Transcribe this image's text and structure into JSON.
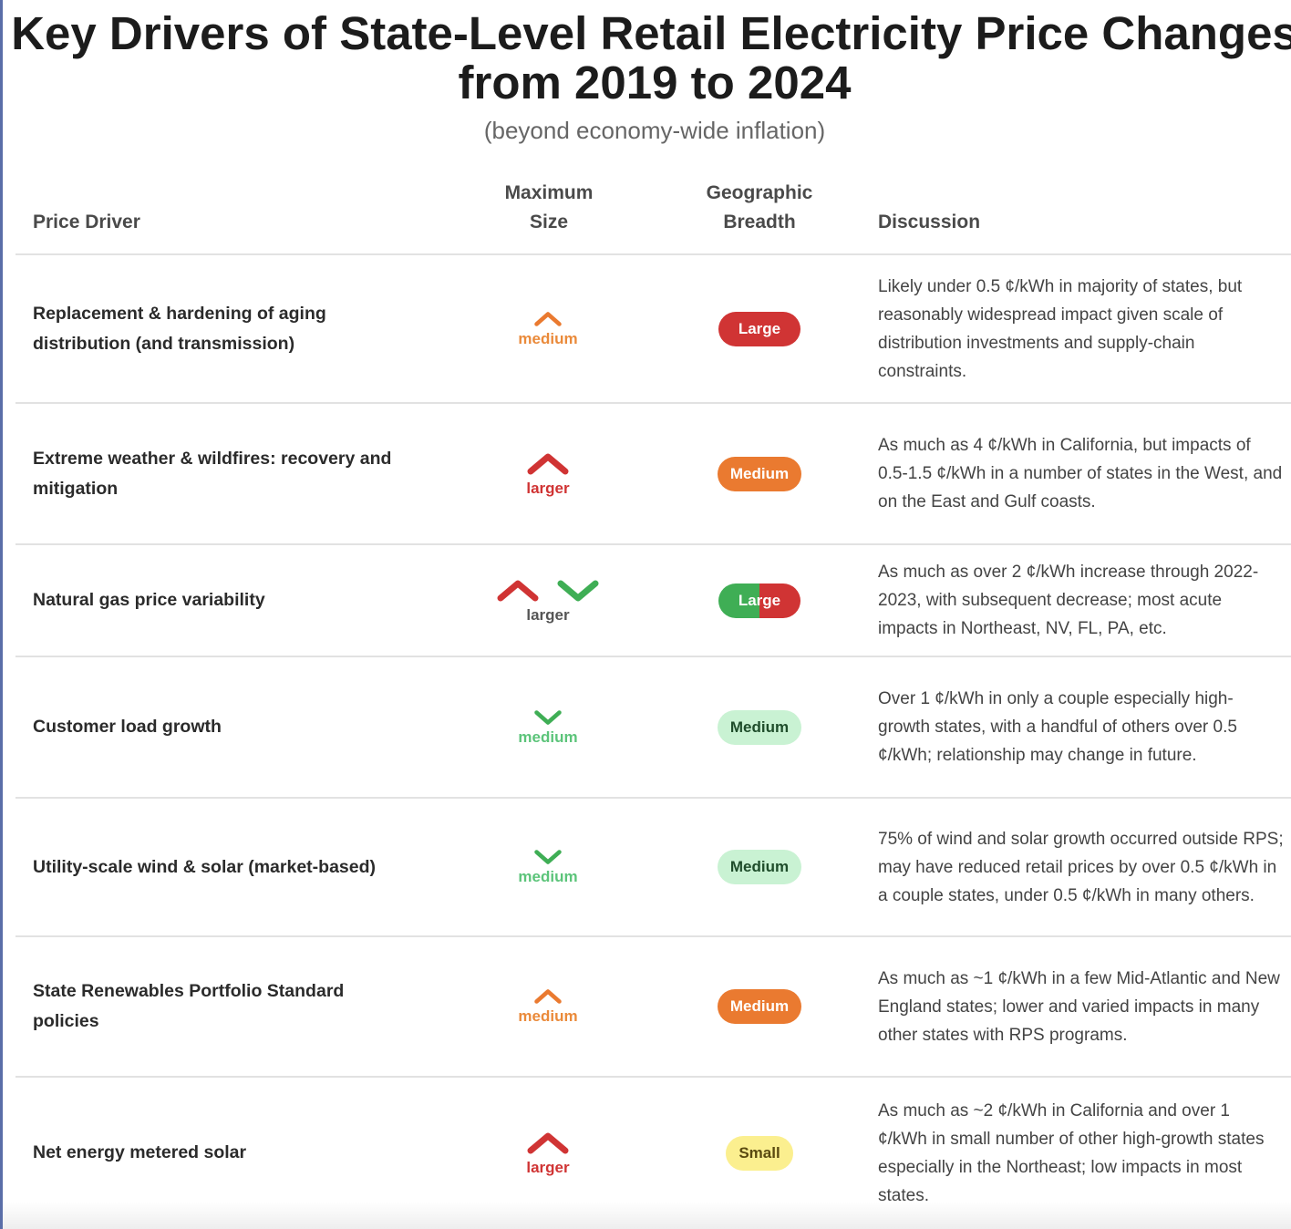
{
  "title": "Key Drivers of State-Level Retail Electricity Price Changes from 2019 to 2024",
  "subtitle": "(beyond economy-wide inflation)",
  "headers": {
    "driver": "Price Driver",
    "size": "Maximum Size",
    "geo": "Geographic Breadth",
    "discussion": "Discussion"
  },
  "colors": {
    "red": "#d03434",
    "orange": "#ea7a30",
    "green": "#3fae55",
    "light_green": "#c9f2d3",
    "yellow": "#fbef8f"
  },
  "rows": [
    {
      "driver": "Replacement & hardening of aging distribution (and transmission)",
      "size": "medium",
      "direction": "up",
      "size_color": "#ea8a3a",
      "geo": "Large",
      "geo_style": "red",
      "discussion": "Likely under 0.5 ¢/kWh in majority of states, but reasonably widespread impact given scale of distribution investments and supply-chain constraints."
    },
    {
      "driver": "Extreme weather & wildfires: recovery and mitigation",
      "size": "larger",
      "direction": "up",
      "size_color": "#d03434",
      "geo": "Medium",
      "geo_style": "orange",
      "discussion": "As much as 4 ¢/kWh in California, but impacts of 0.5-1.5 ¢/kWh in a number of states in the West, and on the East and Gulf coasts."
    },
    {
      "driver": "Natural gas price variability",
      "size": "larger",
      "direction": "both",
      "size_color": "#555",
      "geo": "Large",
      "geo_style": "split",
      "discussion": "As much as over 2 ¢/kWh increase through 2022-2023, with subsequent decrease; most acute impacts in Northeast, NV, FL, PA, etc."
    },
    {
      "driver": "Customer load growth",
      "size": "medium",
      "direction": "down",
      "size_color": "#5cc47a",
      "geo": "Medium",
      "geo_style": "lightgreen",
      "discussion": "Over 1 ¢/kWh in only a couple especially high-growth states, with a handful of others over 0.5 ¢/kWh; relationship may change in future."
    },
    {
      "driver": "Utility-scale wind & solar (market-based)",
      "size": "medium",
      "direction": "down",
      "size_color": "#5cc47a",
      "geo": "Medium",
      "geo_style": "lightgreen",
      "discussion": "75% of wind and solar growth occurred outside RPS; may have reduced retail prices by over 0.5 ¢/kWh in a couple states, under 0.5 ¢/kWh in many others."
    },
    {
      "driver": "State Renewables Portfolio Standard policies",
      "size": "medium",
      "direction": "up",
      "size_color": "#ea8a3a",
      "geo": "Medium",
      "geo_style": "orange",
      "discussion": "As much as ~1 ¢/kWh in a few Mid-Atlantic and New England states; lower and varied impacts in many other states with RPS programs."
    },
    {
      "driver": "Net energy metered solar",
      "size": "larger",
      "direction": "up",
      "size_color": "#d03434",
      "geo": "Small",
      "geo_style": "yellow",
      "discussion": "As much as ~2 ¢/kWh in California and over 1 ¢/kWh in small number of other high-growth states especially in the Northeast; low impacts in most states."
    }
  ]
}
